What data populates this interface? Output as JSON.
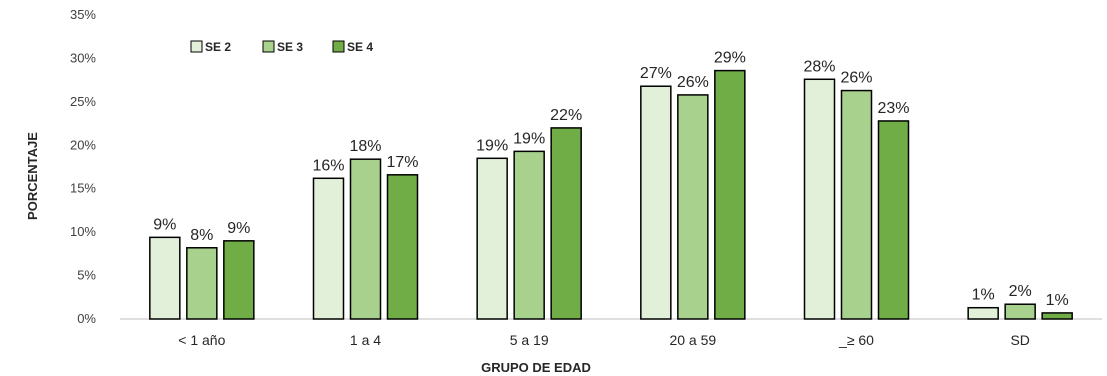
{
  "chart_data": {
    "type": "bar",
    "categories": [
      "< 1 año",
      "1 a 4",
      "5 a 19",
      "20 a 59",
      "_≥ 60",
      "SD"
    ],
    "series": [
      {
        "name": "SE 2",
        "values": [
          9.4,
          16.2,
          18.5,
          26.8,
          27.6,
          1.3
        ],
        "labels": [
          "9%",
          "16%",
          "19%",
          "27%",
          "28%",
          "1%"
        ],
        "color": "#e2efd9"
      },
      {
        "name": "SE 3",
        "values": [
          8.2,
          18.4,
          19.3,
          25.8,
          26.3,
          1.7
        ],
        "labels": [
          "8%",
          "18%",
          "19%",
          "26%",
          "26%",
          "2%"
        ],
        "color": "#a9d18e"
      },
      {
        "name": "SE 4",
        "values": [
          9.0,
          16.6,
          22.0,
          28.6,
          22.8,
          0.7
        ],
        "labels": [
          "9%",
          "17%",
          "22%",
          "29%",
          "23%",
          "1%"
        ],
        "color": "#70ad47"
      }
    ],
    "xlabel": "GRUPO DE EDAD",
    "ylabel": "PORCENTAJE",
    "ylim": [
      0,
      35
    ],
    "yticks": [
      "0%",
      "5%",
      "10%",
      "15%",
      "20%",
      "25%",
      "30%",
      "35%"
    ],
    "grid": false,
    "legend_position": "top-left"
  }
}
